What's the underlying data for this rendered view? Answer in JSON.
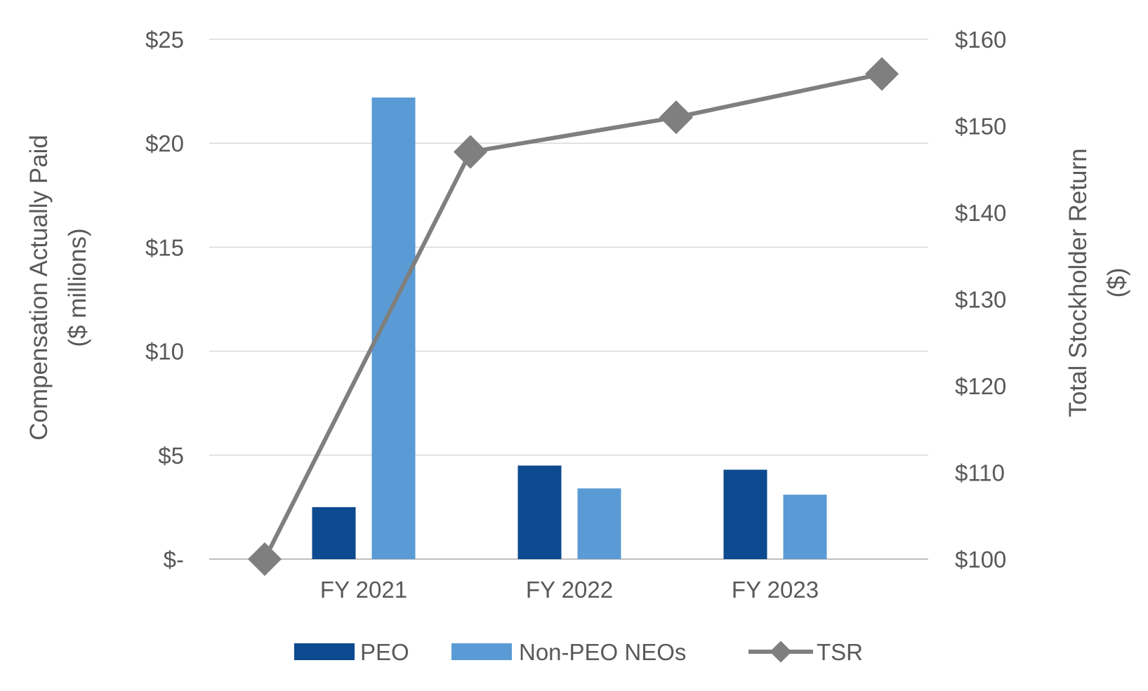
{
  "chart_data": {
    "type": "bar",
    "categories": [
      "FY 2021",
      "FY 2022",
      "FY 2023"
    ],
    "series": [
      {
        "name": "PEO",
        "axis": "left",
        "type": "bar",
        "color": "#0D4A8F",
        "values": [
          2.5,
          4.5,
          4.3
        ]
      },
      {
        "name": "Non-PEO NEOs",
        "axis": "left",
        "type": "bar",
        "color": "#5B9BD5",
        "values": [
          22.2,
          3.4,
          3.1
        ]
      }
    ],
    "tsr": {
      "name": "TSR",
      "axis": "right",
      "type": "line",
      "color": "#7F7F7F",
      "points": [
        100,
        147,
        151,
        156
      ]
    },
    "left_axis": {
      "title_line1": "Compensation Actually Paid",
      "title_line2": "($ millions)",
      "range": [
        0,
        25
      ],
      "ticks": [
        0,
        5,
        10,
        15,
        20,
        25
      ],
      "tick_labels": [
        "$-",
        "$5",
        "$10",
        "$15",
        "$20",
        "$25"
      ]
    },
    "right_axis": {
      "title_line1": "Total Stockholder  Return",
      "title_line2": "($)",
      "range": [
        100,
        160
      ],
      "ticks": [
        100,
        110,
        120,
        130,
        140,
        150,
        160
      ],
      "tick_labels": [
        "$100",
        "$110",
        "$120",
        "$130",
        "$140",
        "$150",
        "$160"
      ]
    },
    "grid": true,
    "legend_position": "bottom"
  }
}
